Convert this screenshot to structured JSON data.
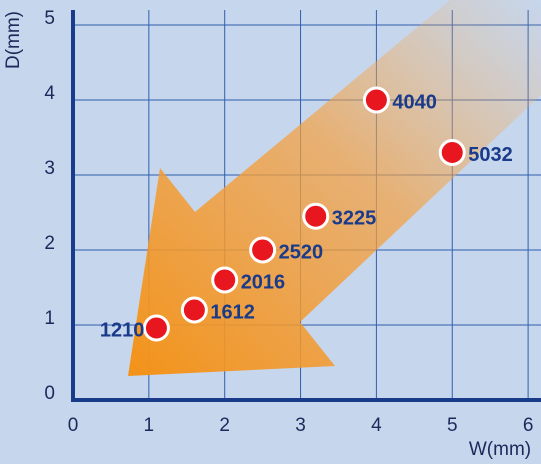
{
  "chart_data": {
    "type": "scatter",
    "x_label": "W(mm)",
    "y_label": "D(mm)",
    "labels": [
      "1210",
      "1612",
      "2016",
      "2520",
      "3225",
      "4040",
      "5032"
    ],
    "x": [
      1.1,
      1.6,
      2.0,
      2.5,
      3.2,
      4.0,
      5.0
    ],
    "values": [
      0.96,
      1.2,
      1.6,
      2.0,
      2.45,
      4.0,
      3.3
    ],
    "color": "#e8161e",
    "xlim": [
      0,
      6.17
    ],
    "ylim": [
      0,
      5.2
    ],
    "xticks": [
      0,
      1,
      2,
      3,
      4,
      5,
      6
    ],
    "yticks": [
      0,
      1,
      2,
      3,
      4,
      5
    ],
    "grid": true
  }
}
